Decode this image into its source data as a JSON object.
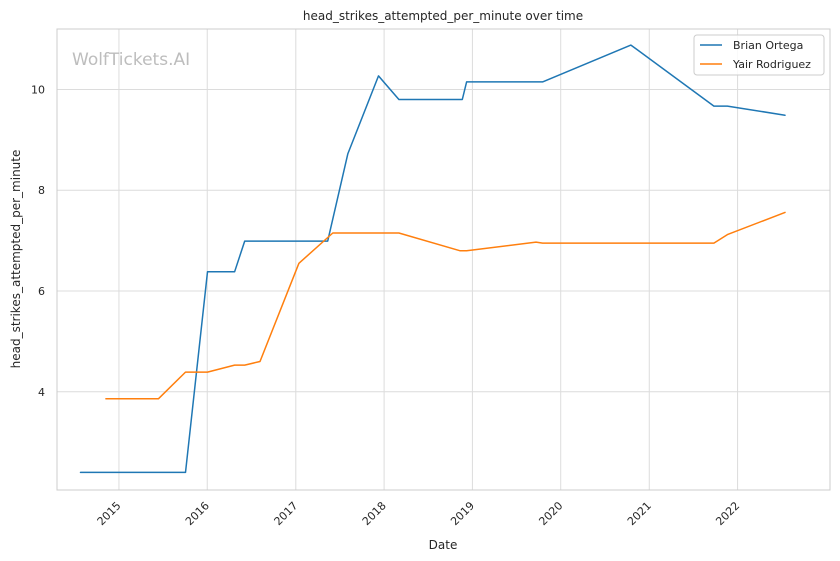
{
  "chart_data": {
    "type": "line",
    "title": "head_strikes_attempted_per_minute over time",
    "xlabel": "Date",
    "ylabel": "head_strikes_attempted_per_minute",
    "x_type": "date",
    "xlim": [
      "2014-04-20",
      "2023-01-18"
    ],
    "ylim": [
      2.05,
      11.2
    ],
    "x_ticks": [
      "2015",
      "2016",
      "2017",
      "2018",
      "2019",
      "2020",
      "2021",
      "2022"
    ],
    "y_ticks": [
      4,
      6,
      8,
      10
    ],
    "grid": true,
    "legend_position": "top-right",
    "watermark": "WolfTickets.AI",
    "series": [
      {
        "name": "Brian Ortega",
        "color": "#1f77b4",
        "points": [
          [
            "2014-07-26",
            2.4
          ],
          [
            "2015-10-03",
            2.4
          ],
          [
            "2016-01-02",
            6.38
          ],
          [
            "2016-04-23",
            6.38
          ],
          [
            "2016-06-04",
            6.99
          ],
          [
            "2017-05-13",
            6.99
          ],
          [
            "2017-08-04",
            8.72
          ],
          [
            "2017-12-09",
            10.27
          ],
          [
            "2018-03-03",
            9.8
          ],
          [
            "2018-11-20",
            9.8
          ],
          [
            "2018-12-08",
            10.15
          ],
          [
            "2019-10-18",
            10.15
          ],
          [
            "2020-10-17",
            10.88
          ],
          [
            "2021-09-25",
            9.67
          ],
          [
            "2021-11-20",
            9.67
          ],
          [
            "2022-07-16",
            9.49
          ]
        ]
      },
      {
        "name": "Yair Rodriguez",
        "color": "#ff7f0e",
        "points": [
          [
            "2014-11-08",
            3.86
          ],
          [
            "2015-06-13",
            3.86
          ],
          [
            "2015-10-03",
            4.39
          ],
          [
            "2016-01-02",
            4.39
          ],
          [
            "2016-04-23",
            4.53
          ],
          [
            "2016-06-04",
            4.53
          ],
          [
            "2016-08-06",
            4.6
          ],
          [
            "2017-01-14",
            6.55
          ],
          [
            "2017-06-03",
            7.15
          ],
          [
            "2018-03-03",
            7.15
          ],
          [
            "2018-11-10",
            6.8
          ],
          [
            "2018-12-08",
            6.8
          ],
          [
            "2019-09-21",
            6.97
          ],
          [
            "2019-10-18",
            6.95
          ],
          [
            "2021-09-25",
            6.95
          ],
          [
            "2021-11-20",
            7.12
          ],
          [
            "2022-07-16",
            7.56
          ]
        ]
      }
    ]
  }
}
